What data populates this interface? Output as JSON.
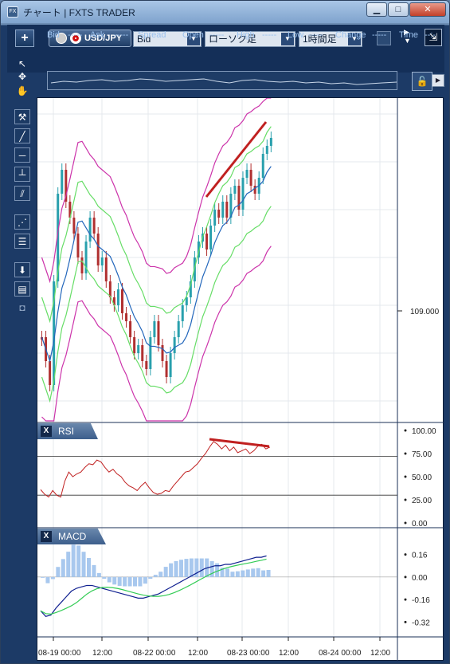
{
  "window": {
    "title": "チャート | FXTS TRADER",
    "app_icon": "FX",
    "minimize": "▁",
    "maximize": "□",
    "close": "✕"
  },
  "toolbar": {
    "add_label": "+",
    "pair": "USD/JPY",
    "price_type": "Bid",
    "chart_type": "ローソク足",
    "timeframe": "1時間足",
    "dropdown_arrow": "▼"
  },
  "quote": {
    "bid_label": "Bid",
    "bid_value": "-----",
    "ask_label": "Ask",
    "ask_value": "-----",
    "spread_label": "Spread",
    "open_label": "Open",
    "open_value": "-----",
    "high_label": "High",
    "high_value": "-----",
    "low_label": "Low",
    "low_value": "-----",
    "change_label": "Change",
    "change_value": "-----",
    "time_label": "Time",
    "time_value": "--:-"
  },
  "sidebar": {
    "tools": [
      "pointer-icon",
      "crosshair-move-icon",
      "hand-icon",
      "hammer-icon",
      "trendline-icon",
      "horizontal-line-icon",
      "vertical-line-icon",
      "parallel-channel-icon",
      "fibonacci-fan-icon",
      "fibonacci-retracement-icon",
      "download-icon",
      "list-icon",
      "camera-icon"
    ]
  },
  "panels": {
    "rsi_label": "RSI",
    "macd_label": "MACD",
    "close_glyph": "X"
  },
  "colors": {
    "bull": "#29a0ad",
    "bear": "#b03030",
    "bb_outer": "#cc33aa",
    "bb_inner": "#66dd66",
    "bb_mid": "#2266bb",
    "rsi_line": "#c02020",
    "macd_line": "#102090",
    "signal_line": "#33cc55",
    "histogram": "#a8c8ee",
    "trendline": "#c02020"
  },
  "chart_data": [
    {
      "type": "candlestick",
      "price_axis_ticks": [
        "109.000"
      ],
      "x_tick_labels": [
        "08-19 00:00",
        "12:00",
        "08-22 00:00",
        "12:00",
        "08-23 00:00",
        "12:00",
        "08-24 00:00",
        "12:00"
      ],
      "visible_range": [
        108.4,
        109.85
      ],
      "indicators": [
        "Bollinger Bands ±1σ ±2σ",
        "Moving Average"
      ]
    },
    {
      "type": "line",
      "name": "RSI",
      "y_ticks": [
        "100.00",
        "75.00",
        "50.00",
        "25.00",
        "0.00"
      ],
      "ylim": [
        0,
        100
      ],
      "reference_lines": [
        72,
        30
      ]
    },
    {
      "type": "bar+line",
      "name": "MACD",
      "y_ticks": [
        "0.16",
        "0.00",
        "-0.16",
        "-0.32"
      ],
      "ylim": [
        -0.38,
        0.22
      ]
    }
  ]
}
